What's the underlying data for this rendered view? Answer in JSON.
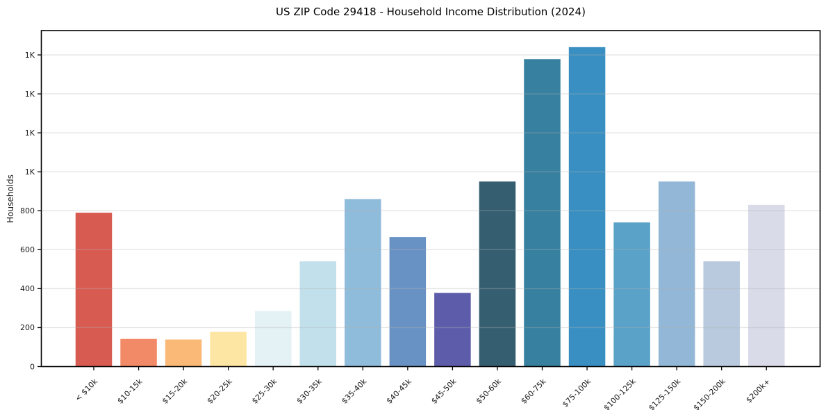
{
  "chart_data": {
    "type": "bar",
    "title": "US ZIP Code 29418 - Household Income Distribution (2024)",
    "xlabel": "",
    "ylabel": "Households",
    "categories": [
      "< $10k",
      "$10-15k",
      "$15-20k",
      "$20-25k",
      "$25-30k",
      "$30-35k",
      "$35-40k",
      "$40-45k",
      "$45-50k",
      "$50-60k",
      "$60-75k",
      "$75-100k",
      "$100-125k",
      "$125-150k",
      "$150-200k",
      "$200k+"
    ],
    "values": [
      790,
      142,
      139,
      178,
      285,
      540,
      860,
      665,
      378,
      950,
      1578,
      1640,
      740,
      950,
      540,
      830
    ],
    "bar_colors": [
      "#d85b52",
      "#f38a67",
      "#fbb977",
      "#fde5a3",
      "#e4f1f5",
      "#c2e0ec",
      "#8fbcdb",
      "#6992c4",
      "#5c5caa",
      "#355f70",
      "#3780a0",
      "#398fc1",
      "#5aa2c8",
      "#93b7d6",
      "#b9cade",
      "#d9dbe9"
    ],
    "yticks": [
      {
        "value": 0,
        "label": "0"
      },
      {
        "value": 200,
        "label": "200"
      },
      {
        "value": 400,
        "label": "400"
      },
      {
        "value": 600,
        "label": "600"
      },
      {
        "value": 800,
        "label": "800"
      },
      {
        "value": 1000,
        "label": "1K"
      },
      {
        "value": 1200,
        "label": "1K"
      },
      {
        "value": 1400,
        "label": "1K"
      },
      {
        "value": 1600,
        "label": "1K"
      }
    ],
    "ylim": [
      0,
      1725
    ],
    "grid": "horizontal-light-over-bars",
    "legend": "none",
    "x_tick_rotation_deg": 45,
    "plot_border_color": "#000000",
    "background_color": "#ffffff"
  }
}
